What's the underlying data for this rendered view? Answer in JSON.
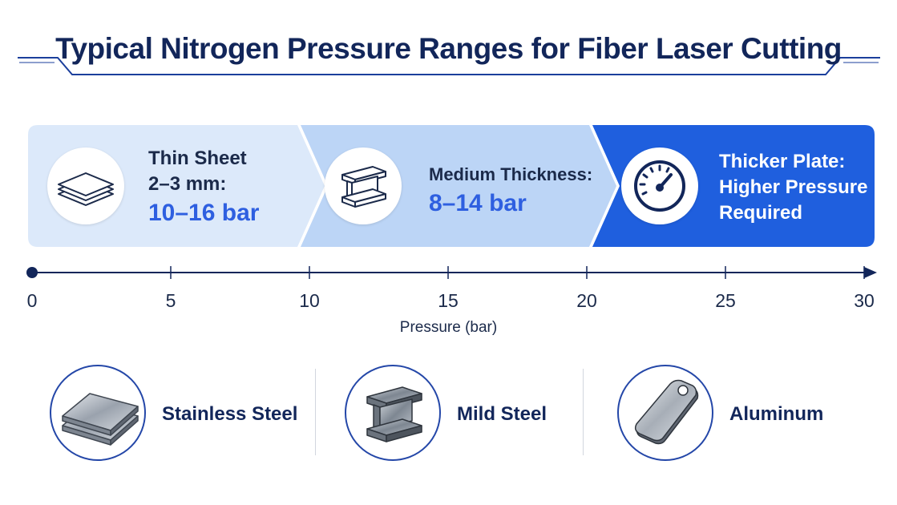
{
  "title": "Typical Nitrogen Pressure Ranges for Fiber Laser Cutting",
  "segments": [
    {
      "line1": "Thin Sheet",
      "line2": "2–3 mm:",
      "value": "10–16 bar",
      "icon": "stacked-sheets-icon"
    },
    {
      "line1": "Medium Thickness:",
      "value": "8–14 bar",
      "icon": "i-beam-icon"
    },
    {
      "line1": "Thicker Plate:",
      "line2": "Higher Pressure",
      "line3": "Required",
      "icon": "pressure-gauge-icon"
    }
  ],
  "colors": {
    "segment1": "#dce9fa",
    "segment2": "#bcd5f6",
    "segment3": "#1f5fde",
    "accent": "#2e5fe0",
    "navy": "#12265a"
  },
  "axis": {
    "min": 0,
    "max": 30,
    "ticks": [
      "0",
      "5",
      "10",
      "15",
      "20",
      "25",
      "30"
    ],
    "label": "Pressure (bar)"
  },
  "materials": [
    {
      "label": "Stainless Steel",
      "icon": "steel-plates-icon"
    },
    {
      "label": "Mild Steel",
      "icon": "steel-beam-icon"
    },
    {
      "label": "Aluminum",
      "icon": "aluminum-tag-icon"
    }
  ]
}
